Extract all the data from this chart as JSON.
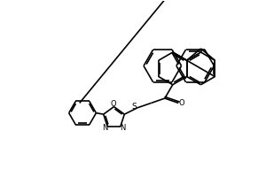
{
  "bg_color": "#ffffff",
  "line_color": "#000000",
  "line_width": 1.2,
  "fig_width": 3.0,
  "fig_height": 2.0,
  "dpi": 100,
  "xlim": [
    0,
    10
  ],
  "ylim": [
    0,
    6.67
  ]
}
